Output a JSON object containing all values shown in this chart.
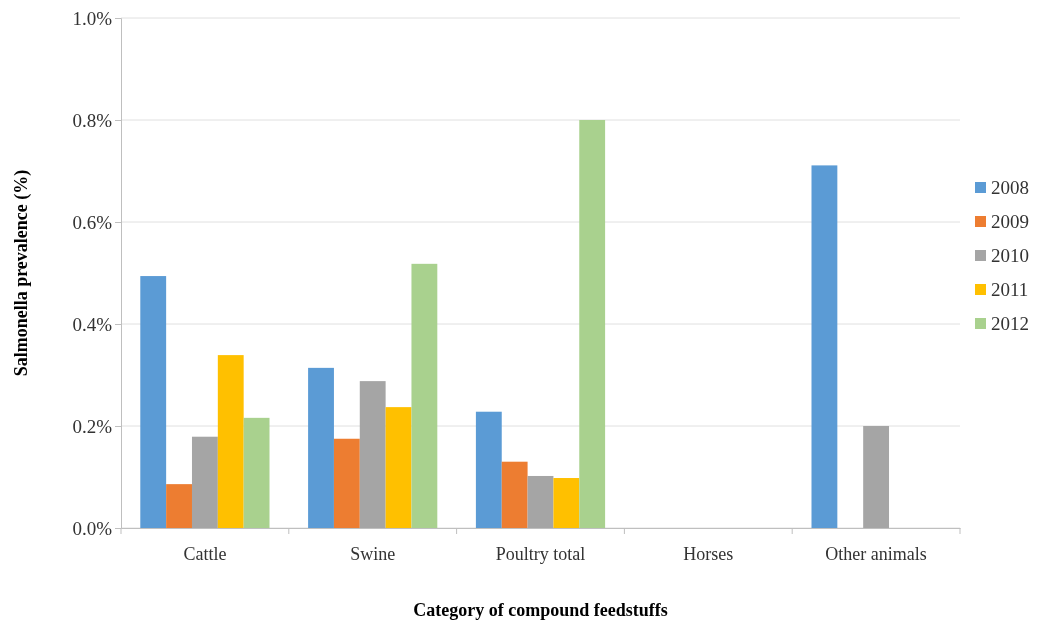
{
  "chart_data": {
    "type": "bar",
    "xlabel": "Category of compound feedstuffs",
    "ylabel": "Salmonella prevalence (%)",
    "categories": [
      "Cattle",
      "Swine",
      "Poultry total",
      "Horses",
      "Other animals"
    ],
    "series": [
      {
        "name": "2008",
        "color": "#5b9bd5",
        "values": [
          0.494,
          0.314,
          0.228,
          0,
          0.711
        ]
      },
      {
        "name": "2009",
        "color": "#ed7d31",
        "values": [
          0.086,
          0.175,
          0.13,
          0,
          0
        ]
      },
      {
        "name": "2010",
        "color": "#a5a5a5",
        "values": [
          0.179,
          0.288,
          0.102,
          0,
          0.2
        ]
      },
      {
        "name": "2011",
        "color": "#ffc000",
        "values": [
          0.339,
          0.237,
          0.098,
          0,
          0
        ]
      },
      {
        "name": "2012",
        "color": "#a9d18e",
        "values": [
          0.216,
          0.518,
          0.8,
          0,
          0
        ]
      }
    ],
    "ylim": [
      0,
      1
    ],
    "yticks": [
      {
        "value": 0,
        "label": "0.0%"
      },
      {
        "value": 0.2,
        "label": "0.2%"
      },
      {
        "value": 0.4,
        "label": "0.4%"
      },
      {
        "value": 0.6,
        "label": "0.6%"
      },
      {
        "value": 0.8,
        "label": "0.8%"
      },
      {
        "value": 1,
        "label": "1.0%"
      }
    ],
    "grid": "y",
    "legend": "right"
  }
}
